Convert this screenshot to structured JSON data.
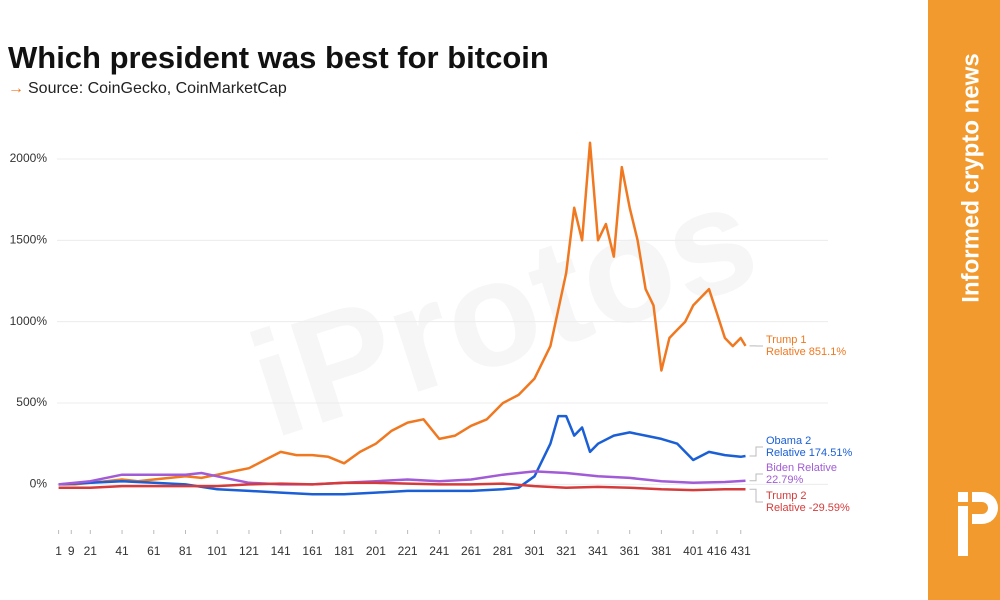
{
  "chart_data": {
    "type": "line",
    "title": "Which president was best for bitcoin",
    "subtitle": "Source: CoinGecko, CoinMarketCap",
    "watermark": "iProtos",
    "side_text": "Informed crypto news",
    "xlim": [
      0,
      486
    ],
    "xticks": [
      1,
      9,
      21,
      41,
      61,
      81,
      101,
      121,
      141,
      161,
      181,
      201,
      221,
      241,
      261,
      281,
      301,
      321,
      341,
      361,
      381,
      401,
      416,
      431
    ],
    "ylim": [
      -280,
      2270
    ],
    "yticks": [
      {
        "value": 0,
        "label": "0%"
      },
      {
        "value": 500,
        "label": "500%"
      },
      {
        "value": 1000,
        "label": "1000%"
      },
      {
        "value": 1500,
        "label": "1500%"
      },
      {
        "value": 2000,
        "label": "2000%"
      }
    ],
    "grid": true,
    "series": [
      {
        "name": "Trump 1",
        "end_label": "Relative 851.1%",
        "color": "#f07820",
        "x": [
          1,
          11,
          21,
          31,
          41,
          51,
          61,
          71,
          81,
          91,
          101,
          111,
          121,
          131,
          141,
          151,
          161,
          171,
          181,
          191,
          201,
          211,
          221,
          231,
          241,
          251,
          261,
          271,
          281,
          291,
          301,
          311,
          321,
          326,
          331,
          336,
          341,
          346,
          351,
          356,
          361,
          366,
          371,
          376,
          381,
          386,
          391,
          396,
          401,
          406,
          411,
          416,
          421,
          426,
          431,
          434
        ],
        "values": [
          0,
          0,
          10,
          20,
          30,
          20,
          30,
          40,
          50,
          40,
          60,
          80,
          100,
          150,
          200,
          180,
          180,
          170,
          130,
          200,
          250,
          330,
          380,
          400,
          280,
          300,
          360,
          400,
          500,
          550,
          650,
          850,
          1300,
          1700,
          1500,
          2100,
          1500,
          1600,
          1400,
          1950,
          1700,
          1500,
          1200,
          1100,
          700,
          900,
          950,
          1000,
          1100,
          1150,
          1200,
          1050,
          900,
          850,
          900,
          851.1
        ]
      },
      {
        "name": "Obama 2",
        "end_label": "Relative 174.51%",
        "color": "#1a5fd6",
        "x": [
          1,
          21,
          41,
          61,
          81,
          101,
          121,
          141,
          161,
          181,
          201,
          221,
          241,
          261,
          281,
          291,
          301,
          311,
          316,
          321,
          326,
          331,
          336,
          341,
          351,
          361,
          371,
          381,
          391,
          401,
          411,
          421,
          431,
          434
        ],
        "values": [
          0,
          10,
          20,
          10,
          0,
          -30,
          -40,
          -50,
          -60,
          -60,
          -50,
          -40,
          -40,
          -40,
          -30,
          -20,
          50,
          250,
          420,
          420,
          300,
          350,
          200,
          250,
          300,
          320,
          300,
          280,
          250,
          150,
          200,
          180,
          170,
          174.51
        ]
      },
      {
        "name": "Biden Relative",
        "end_label": "22.79%",
        "color": "#a25bd6",
        "x": [
          1,
          21,
          41,
          61,
          81,
          91,
          101,
          121,
          141,
          161,
          181,
          201,
          221,
          241,
          261,
          281,
          301,
          321,
          341,
          361,
          381,
          401,
          421,
          434
        ],
        "values": [
          0,
          20,
          60,
          60,
          60,
          70,
          50,
          10,
          0,
          0,
          10,
          20,
          30,
          20,
          30,
          60,
          80,
          70,
          50,
          40,
          20,
          10,
          15,
          22.79
        ]
      },
      {
        "name": "Trump 2",
        "end_label": "Relative -29.59%",
        "color": "#d63b3b",
        "x": [
          1,
          21,
          41,
          61,
          81,
          101,
          121,
          141,
          161,
          181,
          201,
          221,
          241,
          261,
          281,
          301,
          321,
          341,
          361,
          381,
          401,
          421,
          434
        ],
        "values": [
          -20,
          -20,
          -10,
          -10,
          -10,
          -10,
          0,
          5,
          0,
          10,
          10,
          5,
          0,
          0,
          5,
          -10,
          -20,
          -15,
          -20,
          -30,
          -35,
          -30,
          -29.59
        ]
      }
    ]
  }
}
